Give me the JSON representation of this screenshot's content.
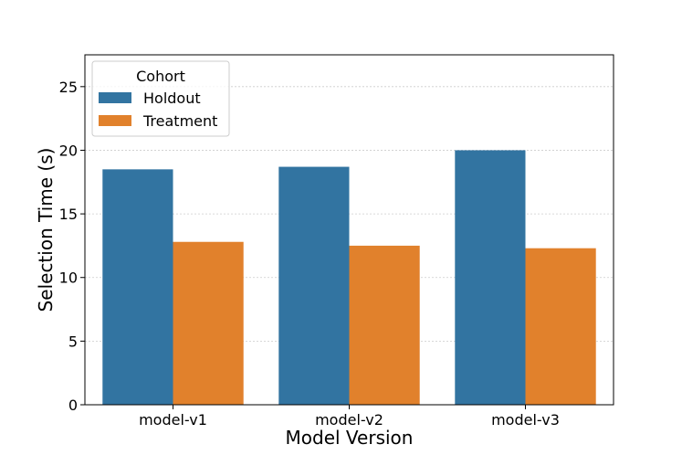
{
  "chart_data": {
    "type": "bar",
    "xlabel": "Model Version",
    "ylabel": "Selection Time (s)",
    "categories": [
      "model-v1",
      "model-v2",
      "model-v3"
    ],
    "series": [
      {
        "name": "Holdout",
        "color": "#3274a1",
        "values": [
          18.5,
          18.7,
          20.0
        ]
      },
      {
        "name": "Treatment",
        "color": "#e1812c",
        "values": [
          12.8,
          12.5,
          12.3
        ]
      }
    ],
    "ylim": [
      0,
      27.5
    ],
    "yticks": [
      "0",
      "5",
      "10",
      "15",
      "20",
      "25"
    ],
    "grid": true,
    "legend": {
      "title": "Cohort",
      "position": "top-left"
    }
  }
}
